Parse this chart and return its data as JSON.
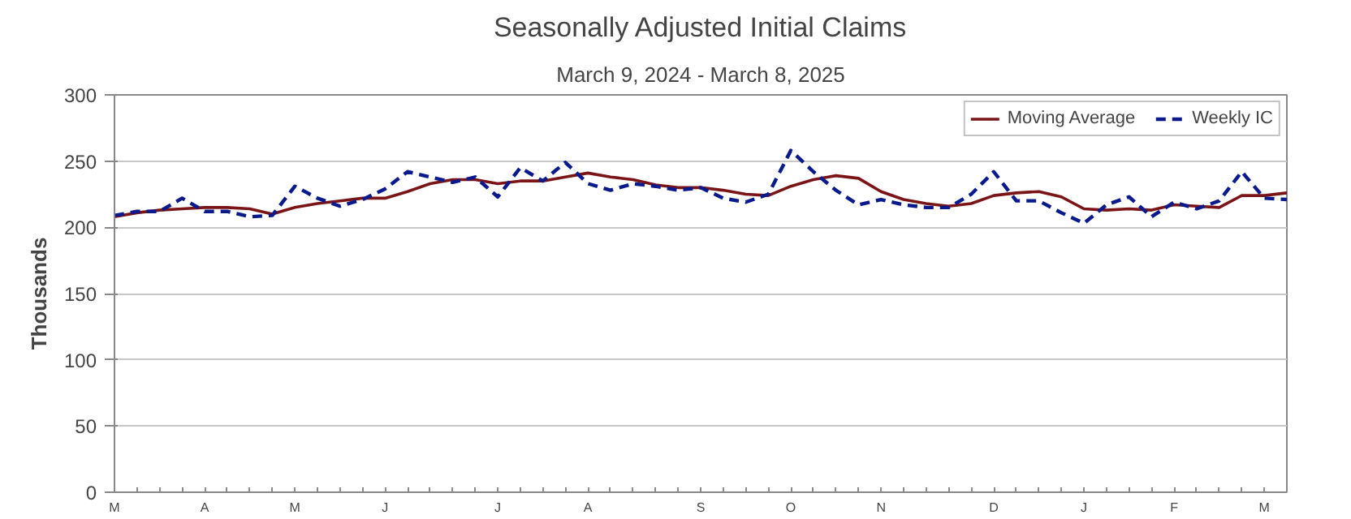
{
  "chart_data": {
    "type": "line",
    "title": "Seasonally Adjusted Initial Claims",
    "subtitle": "March 9, 2024 - March 8, 2025",
    "ylabel": "Thousands",
    "categories": [
      "M",
      null,
      null,
      null,
      "A",
      null,
      null,
      null,
      "M",
      null,
      null,
      null,
      "J",
      null,
      null,
      null,
      null,
      "J",
      null,
      null,
      null,
      "A",
      null,
      null,
      null,
      null,
      "S",
      null,
      null,
      null,
      "O",
      null,
      null,
      null,
      "N",
      null,
      null,
      null,
      null,
      "D",
      null,
      null,
      null,
      "J",
      null,
      null,
      null,
      "F",
      null,
      null,
      null,
      "M",
      null
    ],
    "ylim": [
      0,
      300
    ],
    "yticks": [
      0,
      50,
      100,
      150,
      200,
      250,
      300
    ],
    "grid": "y",
    "legend": "top right",
    "series": [
      {
        "name": "Moving Average",
        "color": "#7b1416",
        "line_style": "solid",
        "values": [
          208,
          211,
          213,
          214,
          215,
          215,
          214,
          210,
          215,
          218,
          220,
          222,
          222,
          227,
          233,
          236,
          236,
          233,
          235,
          235,
          238,
          241,
          238,
          236,
          232,
          230,
          230,
          228,
          225,
          224,
          231,
          236,
          239,
          237,
          227,
          221,
          218,
          216,
          218,
          224,
          226,
          227,
          223,
          214,
          213,
          214,
          213,
          217,
          216,
          215,
          224,
          224,
          226
        ]
      },
      {
        "name": "Weekly IC",
        "color": "#0a1a8c",
        "line_style": "dashed",
        "values": [
          209,
          212,
          212,
          222,
          212,
          212,
          208,
          209,
          231,
          222,
          216,
          221,
          229,
          242,
          238,
          234,
          238,
          223,
          245,
          235,
          249,
          233,
          228,
          233,
          231,
          228,
          230,
          222,
          219,
          225,
          258,
          242,
          228,
          217,
          221,
          217,
          215,
          215,
          225,
          242,
          220,
          220,
          211,
          203,
          217,
          223,
          208,
          219,
          214,
          220,
          242,
          222,
          221
        ]
      }
    ]
  }
}
